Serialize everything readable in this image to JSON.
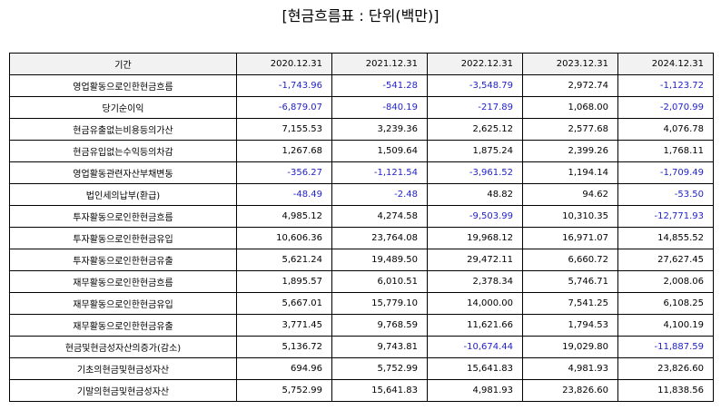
{
  "title": "[현금흐름표 : 단위(백만)]",
  "header": {
    "label": "기간",
    "periods": [
      "2020.12.31",
      "2021.12.31",
      "2022.12.31",
      "2023.12.31",
      "2024.12.31"
    ]
  },
  "colors": {
    "negative": "#2222cc",
    "header_bg": "#f2f2f2"
  },
  "rows": [
    {
      "label": "영업활동으로인한현금흐름",
      "values": [
        "-1,743.96",
        "-541.28",
        "-3,548.79",
        "2,972.74",
        "-1,123.72"
      ]
    },
    {
      "label": "당기순이익",
      "values": [
        "-6,879.07",
        "-840.19",
        "-217.89",
        "1,068.00",
        "-2,070.99"
      ]
    },
    {
      "label": "현금유출없는비용등의가산",
      "values": [
        "7,155.53",
        "3,239.36",
        "2,625.12",
        "2,577.68",
        "4,076.78"
      ]
    },
    {
      "label": "현금유입없는수익등의차감",
      "values": [
        "1,267.68",
        "1,509.64",
        "1,875.24",
        "2,399.26",
        "1,768.11"
      ]
    },
    {
      "label": "영업활동관련자산부채변동",
      "values": [
        "-356.27",
        "-1,121.54",
        "-3,961.52",
        "1,194.14",
        "-1,709.49"
      ]
    },
    {
      "label": "법인세의납부(환급)",
      "values": [
        "-48.49",
        "-2.48",
        "48.82",
        "94.62",
        "-53.50"
      ]
    },
    {
      "label": "투자활동으로인한현금흐름",
      "values": [
        "4,985.12",
        "4,274.58",
        "-9,503.99",
        "10,310.35",
        "-12,771.93"
      ]
    },
    {
      "label": "투자활동으로인한현금유입",
      "values": [
        "10,606.36",
        "23,764.08",
        "19,968.12",
        "16,971.07",
        "14,855.52"
      ]
    },
    {
      "label": "투자활동으로인한현금유출",
      "values": [
        "5,621.24",
        "19,489.50",
        "29,472.11",
        "6,660.72",
        "27,627.45"
      ]
    },
    {
      "label": "재무활동으로인한현금흐름",
      "values": [
        "1,895.57",
        "6,010.51",
        "2,378.34",
        "5,746.71",
        "2,008.06"
      ]
    },
    {
      "label": "재무활동으로인한현금유입",
      "values": [
        "5,667.01",
        "15,779.10",
        "14,000.00",
        "7,541.25",
        "6,108.25"
      ]
    },
    {
      "label": "재무활동으로인한현금유출",
      "values": [
        "3,771.45",
        "9,768.59",
        "11,621.66",
        "1,794.53",
        "4,100.19"
      ]
    },
    {
      "label": "현금및현금성자산의증가(감소)",
      "values": [
        "5,136.72",
        "9,743.81",
        "-10,674.44",
        "19,029.80",
        "-11,887.59"
      ]
    },
    {
      "label": "기초의현금및현금성자산",
      "values": [
        "694.96",
        "5,752.99",
        "15,641.83",
        "4,981.93",
        "23,826.60"
      ]
    },
    {
      "label": "기말의현금및현금성자산",
      "values": [
        "5,752.99",
        "15,641.83",
        "4,981.93",
        "23,826.60",
        "11,838.56"
      ]
    }
  ]
}
